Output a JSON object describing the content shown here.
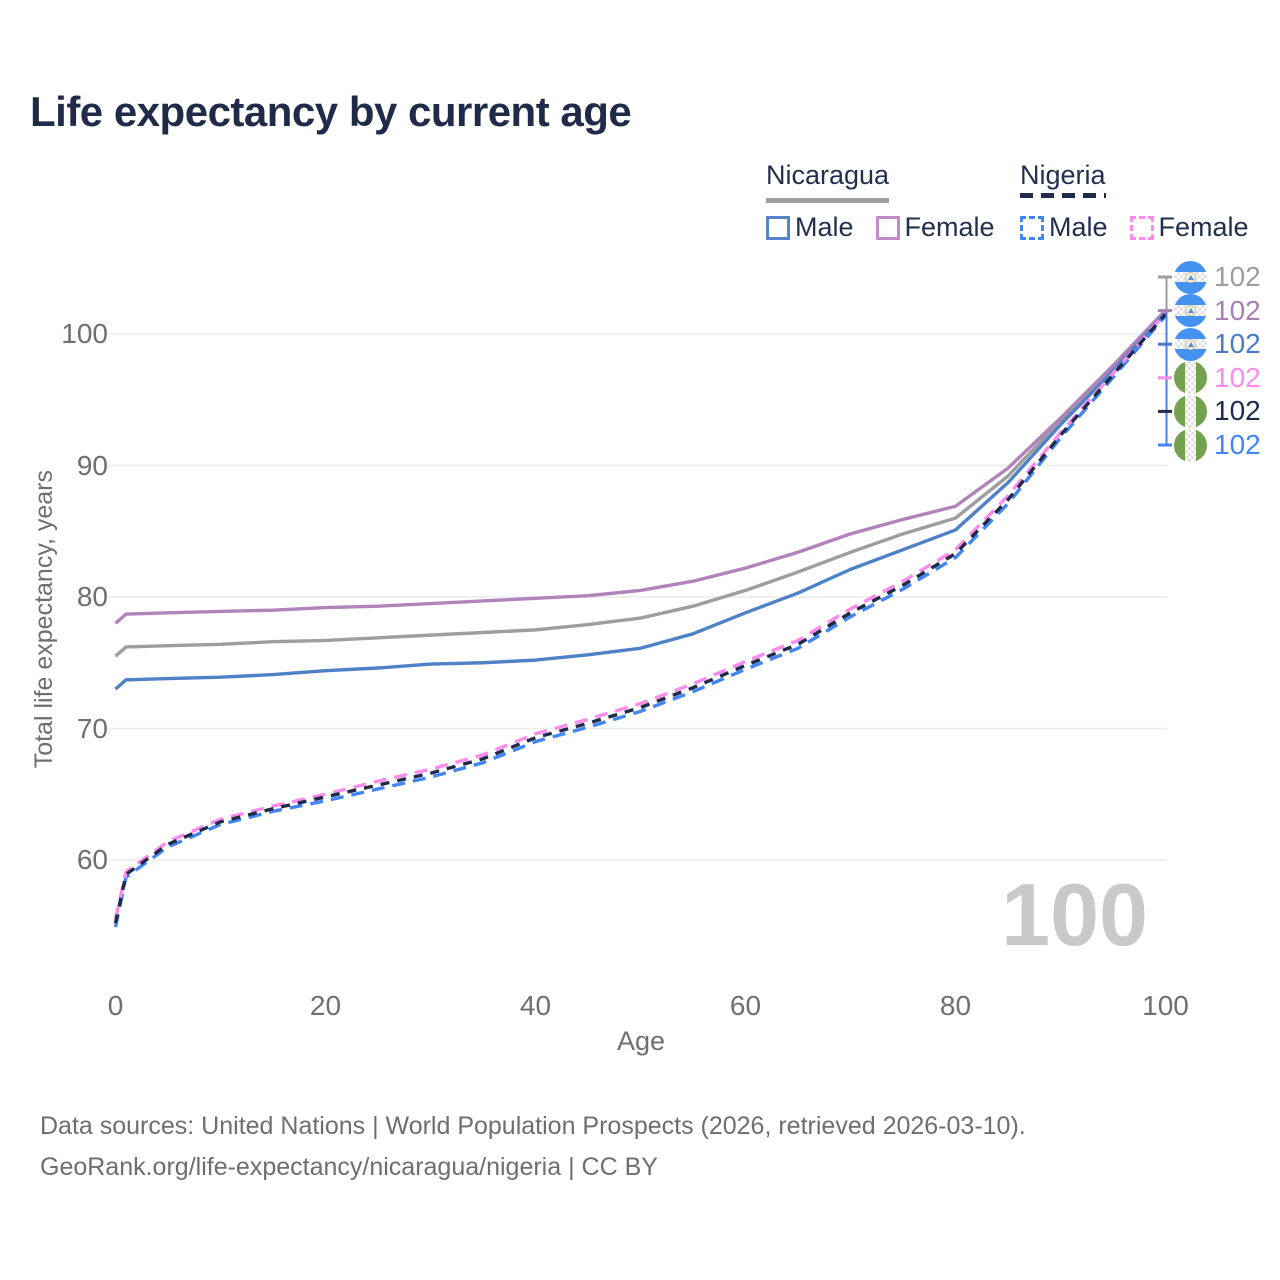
{
  "title": "Life expectancy by current age",
  "legend": {
    "groups": [
      {
        "name": "Nicaragua",
        "line_style": "solid",
        "underline_color": "#9e9e9e",
        "items": [
          {
            "label": "Male",
            "swatch_color": "#5585c8",
            "swatch_style": "solid"
          },
          {
            "label": "Female",
            "swatch_color": "#c18bc5",
            "swatch_style": "solid"
          }
        ]
      },
      {
        "name": "Nigeria",
        "line_style": "dashed",
        "underline_color": "#1f2b49",
        "items": [
          {
            "label": "Male",
            "swatch_color": "#4286f5",
            "swatch_style": "dashed"
          },
          {
            "label": "Female",
            "swatch_color": "#fb8ceb",
            "swatch_style": "dashed"
          }
        ]
      }
    ]
  },
  "y_axis": {
    "title": "Total life expectancy, years",
    "ticks": [
      60,
      70,
      80,
      90,
      100
    ]
  },
  "x_axis": {
    "title": "Age",
    "ticks": [
      0,
      20,
      40,
      60,
      80,
      100
    ]
  },
  "end_labels": [
    {
      "country": "nicaragua",
      "flag": "nicaragua-flag-icon",
      "value": "102",
      "color": "#9e9e9e",
      "series": "Nicaragua All"
    },
    {
      "country": "nicaragua",
      "flag": "nicaragua-flag-icon",
      "value": "102",
      "color": "#a77fb3",
      "series": "Nicaragua Female"
    },
    {
      "country": "nicaragua",
      "flag": "nicaragua-flag-icon",
      "value": "102",
      "color": "#4a7bc4",
      "series": "Nicaragua Male"
    },
    {
      "country": "nigeria",
      "flag": "nigeria-flag-icon",
      "value": "102",
      "color": "#fb8ceb",
      "series": "Nigeria Female"
    },
    {
      "country": "nigeria",
      "flag": "nigeria-flag-icon",
      "value": "102",
      "color": "#1f2b49",
      "series": "Nigeria All"
    },
    {
      "country": "nigeria",
      "flag": "nigeria-flag-icon",
      "value": "102",
      "color": "#4286f5",
      "series": "Nigeria Male"
    }
  ],
  "watermark": "100",
  "footer": {
    "line1": "Data sources: United Nations | World Population Prospects (2026, retrieved 2026-03-10).",
    "line2": "GeoRank.org/life-expectancy/nicaragua/nigeria | CC BY"
  },
  "colors": {
    "title_text": "#1f2b49",
    "axis_text": "#6f6f6f",
    "gridline": "#ececec",
    "watermark": "#c9c9c9",
    "nicaragua_male": "#4f81c7",
    "nicaragua_female": "#b083bb",
    "nicaragua_all": "#9e9e9e",
    "nigeria_male": "#4286f5",
    "nigeria_female": "#fb8ceb",
    "nigeria_all": "#1f2b49"
  },
  "chart_data": {
    "type": "line",
    "title": "Life expectancy by current age",
    "xlabel": "Age",
    "ylabel": "Total life expectancy, years",
    "xlim": [
      0,
      100
    ],
    "ylim": [
      54,
      103
    ],
    "grid": "horizontal",
    "legend_position": "top-right",
    "yticks": [
      60,
      70,
      80,
      90,
      100
    ],
    "xticks": [
      0,
      20,
      40,
      60,
      80,
      100
    ],
    "x": [
      0,
      1,
      5,
      10,
      15,
      20,
      25,
      30,
      35,
      40,
      45,
      50,
      55,
      60,
      65,
      70,
      75,
      80,
      85,
      90,
      95,
      100
    ],
    "series": [
      {
        "id": "nicaragua_all",
        "name": "Nicaragua All",
        "color": "#9e9e9e",
        "dash": "none",
        "values": [
          75.5,
          76.2,
          76.3,
          76.4,
          76.6,
          76.7,
          76.9,
          77.1,
          77.3,
          77.5,
          77.9,
          78.4,
          79.3,
          80.5,
          81.9,
          83.4,
          84.8,
          86.0,
          89.2,
          93.4,
          97.4,
          101.7
        ]
      },
      {
        "id": "nicaragua_female",
        "name": "Nicaragua Female",
        "color": "#b083bb",
        "dash": "none",
        "values": [
          78.0,
          78.7,
          78.8,
          78.9,
          79.0,
          79.2,
          79.3,
          79.5,
          79.7,
          79.9,
          80.1,
          80.5,
          81.2,
          82.2,
          83.4,
          84.8,
          85.9,
          86.9,
          89.8,
          93.6,
          97.6,
          101.8
        ]
      },
      {
        "id": "nicaragua_male",
        "name": "Nicaragua Male",
        "color": "#4f81c7",
        "dash": "none",
        "values": [
          73.0,
          73.7,
          73.8,
          73.9,
          74.1,
          74.4,
          74.6,
          74.9,
          75.0,
          75.2,
          75.6,
          76.1,
          77.2,
          78.8,
          80.3,
          82.1,
          83.6,
          85.1,
          88.7,
          93.1,
          97.2,
          101.6
        ]
      },
      {
        "id": "nigeria_male",
        "name": "Nigeria Male",
        "color": "#4286f5",
        "dash": "13 8",
        "values": [
          54.9,
          58.7,
          61.0,
          62.7,
          63.7,
          64.5,
          65.4,
          66.3,
          67.4,
          69.0,
          70.1,
          71.3,
          72.8,
          74.5,
          76.1,
          78.5,
          80.6,
          83.0,
          87.1,
          92.1,
          96.7,
          101.4
        ]
      },
      {
        "id": "nigeria_female",
        "name": "Nigeria Female",
        "color": "#fb8ceb",
        "dash": "13 8",
        "values": [
          55.5,
          59.1,
          61.4,
          63.1,
          64.1,
          65.0,
          66.0,
          66.9,
          68.0,
          69.6,
          70.7,
          71.9,
          73.4,
          75.1,
          76.7,
          79.1,
          81.2,
          83.6,
          87.7,
          92.5,
          97.0,
          101.6
        ]
      },
      {
        "id": "nigeria_all",
        "name": "Nigeria All",
        "color": "#1f2b49",
        "dash": "9 8",
        "values": [
          55.2,
          58.9,
          61.2,
          62.9,
          63.9,
          64.8,
          65.7,
          66.6,
          67.7,
          69.3,
          70.4,
          71.6,
          73.1,
          74.8,
          76.4,
          78.8,
          80.9,
          83.3,
          87.4,
          92.3,
          96.9,
          101.5
        ]
      }
    ],
    "end_value_labels": [
      102,
      102,
      102,
      102,
      102,
      102
    ]
  }
}
